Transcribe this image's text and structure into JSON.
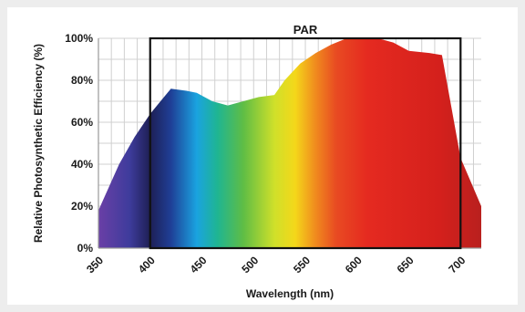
{
  "chart_data": {
    "type": "area",
    "title": "",
    "xlabel": "Wavelength (nm)",
    "ylabel": "Relative Photosynthetic Efficiency (%)",
    "xlim": [
      350,
      720
    ],
    "ylim": [
      0,
      100
    ],
    "x_ticks": [
      "350",
      "400",
      "450",
      "500",
      "550",
      "600",
      "650",
      "700"
    ],
    "y_ticks": [
      "0%",
      "20%",
      "40%",
      "60%",
      "80%",
      "100%"
    ],
    "grid": true,
    "x": [
      350,
      370,
      385,
      400,
      410,
      420,
      435,
      445,
      460,
      475,
      490,
      505,
      520,
      530,
      545,
      560,
      575,
      590,
      605,
      620,
      635,
      650,
      670,
      682,
      700,
      720
    ],
    "y": [
      18,
      40,
      53,
      64,
      70,
      76,
      75,
      74,
      70,
      68,
      70,
      72,
      73,
      80,
      88,
      93,
      97,
      100,
      100,
      100,
      98,
      94,
      93,
      92,
      43,
      20
    ],
    "annotation": {
      "label": "PAR",
      "x_range": [
        400,
        700
      ],
      "y_top": 100
    },
    "fill_gradient": [
      {
        "x": 350,
        "color": "#6a3fa6"
      },
      {
        "x": 380,
        "color": "#3e3c9c"
      },
      {
        "x": 400,
        "color": "#1e1f55"
      },
      {
        "x": 420,
        "color": "#1f3f96"
      },
      {
        "x": 445,
        "color": "#1aa3e0"
      },
      {
        "x": 465,
        "color": "#1fb592"
      },
      {
        "x": 490,
        "color": "#5fbd45"
      },
      {
        "x": 520,
        "color": "#cfe02a"
      },
      {
        "x": 540,
        "color": "#f4d81a"
      },
      {
        "x": 560,
        "color": "#f08a1e"
      },
      {
        "x": 580,
        "color": "#e84a22"
      },
      {
        "x": 610,
        "color": "#e52a20"
      },
      {
        "x": 680,
        "color": "#d4201c"
      },
      {
        "x": 720,
        "color": "#b9201e"
      }
    ]
  }
}
